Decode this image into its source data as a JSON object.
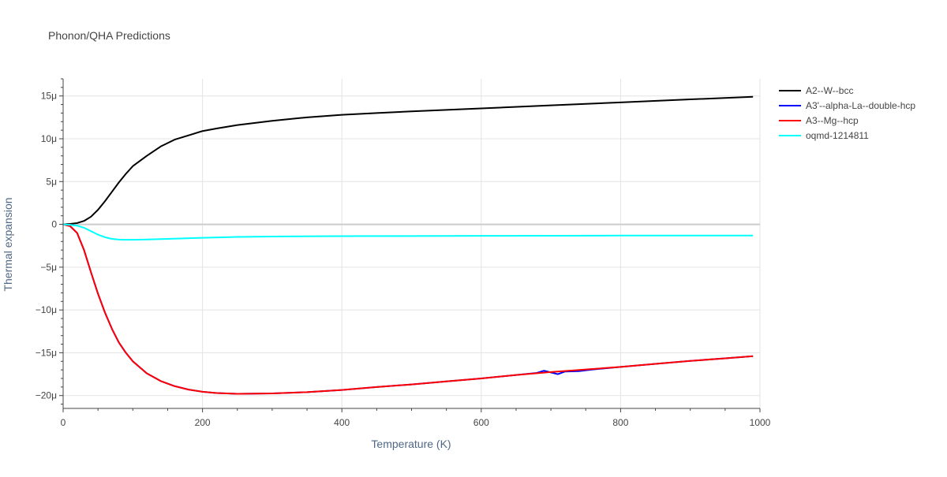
{
  "chart_data": {
    "type": "line",
    "title": "Phonon/QHA Predictions",
    "xlabel": "Temperature (K)",
    "ylabel": "Thermal expansion",
    "xlim": [
      0,
      1000
    ],
    "ylim": [
      -21.5,
      17
    ],
    "x_ticks": [
      0,
      200,
      400,
      600,
      800,
      1000
    ],
    "x_tick_labels": [
      "0",
      "200",
      "400",
      "600",
      "800",
      "1000"
    ],
    "y_ticks": [
      15,
      10,
      5,
      0,
      -5,
      -10,
      -15,
      -20
    ],
    "y_tick_labels": [
      "15μ",
      "10μ",
      "5μ",
      "0",
      "−5μ",
      "−10μ",
      "−15μ",
      "−20μ"
    ],
    "grid": true,
    "legend_position": "top-right",
    "series": [
      {
        "name": "A2--W--bcc",
        "color": "#000000",
        "x": [
          0,
          10,
          20,
          30,
          40,
          50,
          60,
          70,
          80,
          90,
          100,
          120,
          140,
          160,
          180,
          200,
          220,
          250,
          300,
          350,
          400,
          450,
          500,
          600,
          700,
          800,
          900,
          990
        ],
        "y": [
          0,
          0.05,
          0.15,
          0.4,
          0.9,
          1.7,
          2.7,
          3.8,
          4.9,
          5.9,
          6.8,
          8.0,
          9.1,
          9.9,
          10.4,
          10.9,
          11.2,
          11.6,
          12.1,
          12.5,
          12.8,
          13.0,
          13.2,
          13.55,
          13.9,
          14.25,
          14.6,
          14.9
        ]
      },
      {
        "name": "A3'--alpha-La--double-hcp",
        "color": "#0000ff",
        "x": [
          0,
          10,
          20,
          30,
          40,
          50,
          60,
          70,
          80,
          90,
          100,
          120,
          140,
          160,
          180,
          200,
          220,
          250,
          300,
          350,
          400,
          450,
          500,
          550,
          600,
          650,
          680,
          690,
          700,
          710,
          720,
          740,
          760,
          800,
          850,
          900,
          950,
          990
        ],
        "y": [
          0,
          -0.2,
          -1.0,
          -3.0,
          -5.6,
          -8.1,
          -10.3,
          -12.2,
          -13.8,
          -15.0,
          -16.0,
          -17.4,
          -18.3,
          -18.9,
          -19.3,
          -19.55,
          -19.7,
          -19.8,
          -19.75,
          -19.6,
          -19.35,
          -19.0,
          -18.7,
          -18.35,
          -18.0,
          -17.6,
          -17.35,
          -17.1,
          -17.3,
          -17.5,
          -17.2,
          -17.15,
          -16.95,
          -16.65,
          -16.3,
          -15.95,
          -15.65,
          -15.4
        ]
      },
      {
        "name": "A3--Mg--hcp",
        "color": "#ff0000",
        "x": [
          0,
          10,
          20,
          30,
          40,
          50,
          60,
          70,
          80,
          90,
          100,
          120,
          140,
          160,
          180,
          200,
          220,
          250,
          300,
          350,
          400,
          450,
          500,
          550,
          600,
          650,
          700,
          750,
          800,
          850,
          900,
          950,
          990
        ],
        "y": [
          0,
          -0.2,
          -1.0,
          -3.0,
          -5.6,
          -8.1,
          -10.3,
          -12.2,
          -13.8,
          -15.0,
          -16.0,
          -17.4,
          -18.3,
          -18.9,
          -19.3,
          -19.55,
          -19.7,
          -19.8,
          -19.75,
          -19.6,
          -19.35,
          -19.0,
          -18.7,
          -18.35,
          -18.0,
          -17.6,
          -17.25,
          -16.95,
          -16.65,
          -16.3,
          -15.95,
          -15.65,
          -15.4
        ]
      },
      {
        "name": "oqmd-1214811",
        "color": "#00ffff",
        "x": [
          0,
          10,
          20,
          30,
          40,
          50,
          60,
          70,
          80,
          90,
          100,
          120,
          150,
          200,
          250,
          300,
          400,
          500,
          600,
          700,
          800,
          900,
          990
        ],
        "y": [
          0,
          -0.05,
          -0.15,
          -0.4,
          -0.8,
          -1.2,
          -1.5,
          -1.7,
          -1.78,
          -1.8,
          -1.8,
          -1.77,
          -1.7,
          -1.57,
          -1.47,
          -1.42,
          -1.38,
          -1.36,
          -1.34,
          -1.33,
          -1.31,
          -1.3,
          -1.3
        ]
      }
    ]
  }
}
